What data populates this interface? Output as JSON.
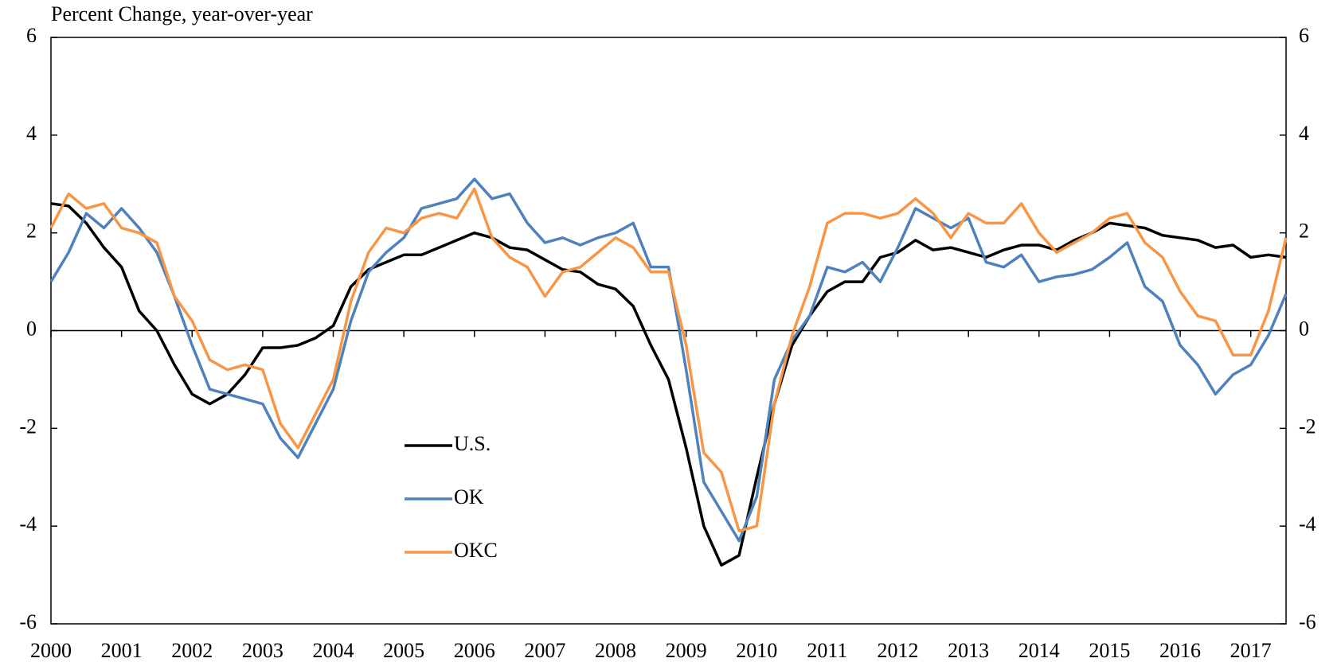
{
  "chart_data": {
    "type": "line",
    "title": "Percent Change, year-over-year",
    "x": [
      2000,
      2000.25,
      2000.5,
      2000.75,
      2001,
      2001.25,
      2001.5,
      2001.75,
      2002,
      2002.25,
      2002.5,
      2002.75,
      2003,
      2003.25,
      2003.5,
      2003.75,
      2004,
      2004.25,
      2004.5,
      2004.75,
      2005,
      2005.25,
      2005.5,
      2005.75,
      2006,
      2006.25,
      2006.5,
      2006.75,
      2007,
      2007.25,
      2007.5,
      2007.75,
      2008,
      2008.25,
      2008.5,
      2008.75,
      2009,
      2009.25,
      2009.5,
      2009.75,
      2010,
      2010.25,
      2010.5,
      2010.75,
      2011,
      2011.25,
      2011.5,
      2011.75,
      2012,
      2012.25,
      2012.5,
      2012.75,
      2013,
      2013.25,
      2013.5,
      2013.75,
      2014,
      2014.25,
      2014.5,
      2014.75,
      2015,
      2015.25,
      2015.5,
      2015.75,
      2016,
      2016.25,
      2016.5,
      2016.75,
      2017,
      2017.25,
      2017.5
    ],
    "series": [
      {
        "name": "U.S.",
        "color": "#000000",
        "values": [
          2.6,
          2.55,
          2.2,
          1.7,
          1.3,
          0.4,
          0.0,
          -0.7,
          -1.3,
          -1.5,
          -1.3,
          -0.9,
          -0.35,
          -0.35,
          -0.3,
          -0.15,
          0.1,
          0.9,
          1.25,
          1.4,
          1.55,
          1.55,
          1.7,
          1.85,
          2.0,
          1.9,
          1.7,
          1.65,
          1.45,
          1.25,
          1.2,
          0.95,
          0.85,
          0.5,
          -0.3,
          -1.0,
          -2.4,
          -4.0,
          -4.8,
          -4.6,
          -3.0,
          -1.5,
          -0.3,
          0.3,
          0.8,
          1.0,
          1.0,
          1.5,
          1.6,
          1.85,
          1.65,
          1.7,
          1.6,
          1.5,
          1.65,
          1.75,
          1.75,
          1.65,
          1.85,
          2.0,
          2.2,
          2.15,
          2.1,
          1.95,
          1.9,
          1.85,
          1.7,
          1.75,
          1.5,
          1.55,
          1.5
        ]
      },
      {
        "name": "OK",
        "color": "#4f81bd",
        "values": [
          1.0,
          1.6,
          2.4,
          2.1,
          2.5,
          2.1,
          1.6,
          0.7,
          -0.3,
          -1.2,
          -1.3,
          -1.4,
          -1.5,
          -2.2,
          -2.6,
          -1.9,
          -1.2,
          0.2,
          1.2,
          1.6,
          1.9,
          2.5,
          2.6,
          2.7,
          3.1,
          2.7,
          2.8,
          2.2,
          1.8,
          1.9,
          1.75,
          1.9,
          2.0,
          2.2,
          1.3,
          1.3,
          -0.8,
          -3.1,
          -3.7,
          -4.3,
          -3.4,
          -1.0,
          -0.2,
          0.3,
          1.3,
          1.2,
          1.4,
          1.0,
          1.7,
          2.5,
          2.3,
          2.1,
          2.3,
          1.4,
          1.3,
          1.55,
          1.0,
          1.1,
          1.15,
          1.25,
          1.5,
          1.8,
          0.9,
          0.6,
          -0.3,
          -0.7,
          -1.3,
          -0.9,
          -0.7,
          -0.1,
          0.75
        ]
      },
      {
        "name": "OKC",
        "color": "#f79646",
        "values": [
          2.1,
          2.8,
          2.5,
          2.6,
          2.1,
          2.0,
          1.8,
          0.7,
          0.2,
          -0.6,
          -0.8,
          -0.7,
          -0.8,
          -1.9,
          -2.4,
          -1.7,
          -1.0,
          0.6,
          1.6,
          2.1,
          2.0,
          2.3,
          2.4,
          2.3,
          2.9,
          1.9,
          1.5,
          1.3,
          0.7,
          1.2,
          1.3,
          1.6,
          1.9,
          1.7,
          1.2,
          1.2,
          -0.3,
          -2.5,
          -2.9,
          -4.1,
          -4.0,
          -1.5,
          -0.1,
          0.9,
          2.2,
          2.4,
          2.4,
          2.3,
          2.4,
          2.7,
          2.4,
          1.9,
          2.4,
          2.2,
          2.2,
          2.6,
          2.0,
          1.6,
          1.8,
          2.0,
          2.3,
          2.4,
          1.8,
          1.5,
          0.8,
          0.3,
          0.2,
          -0.5,
          -0.5,
          0.4,
          1.9
        ]
      }
    ],
    "xlim": [
      2000,
      2017.5
    ],
    "xticks": [
      2000,
      2001,
      2002,
      2003,
      2004,
      2005,
      2006,
      2007,
      2008,
      2009,
      2010,
      2011,
      2012,
      2013,
      2014,
      2015,
      2016,
      2017
    ],
    "ylim": [
      -6,
      6
    ],
    "yticks": [
      -6,
      -4,
      -2,
      0,
      2,
      4,
      6
    ],
    "y2lim": [
      -6,
      6
    ],
    "y2ticks": [
      -6,
      -4,
      -2,
      0,
      2,
      4,
      6
    ],
    "grid": false,
    "legend": "lower center"
  }
}
